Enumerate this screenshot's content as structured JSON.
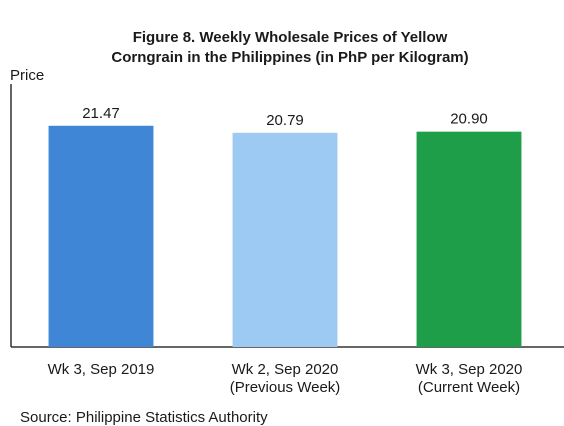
{
  "chart_data": {
    "type": "bar",
    "title": [
      "Figure 8. Weekly Wholesale Prices of Yellow",
      "Corngrain in the Philippines (in PhP per Kilogram)"
    ],
    "y_label": "Price",
    "categories": [
      [
        "Wk 3, Sep 2019"
      ],
      [
        "Wk 2, Sep 2020",
        "(Previous Week)"
      ],
      [
        "Wk 3, Sep 2020",
        "(Current Week)"
      ]
    ],
    "values": [
      21.47,
      20.79,
      20.9
    ],
    "value_labels": [
      "21.47",
      "20.79",
      "20.90"
    ],
    "colors": [
      "#3f86d6",
      "#9ccaf2",
      "#1f9e4a"
    ],
    "ylim": [
      0,
      26.4
    ],
    "source": "Source: Philippine Statistics Authority"
  }
}
